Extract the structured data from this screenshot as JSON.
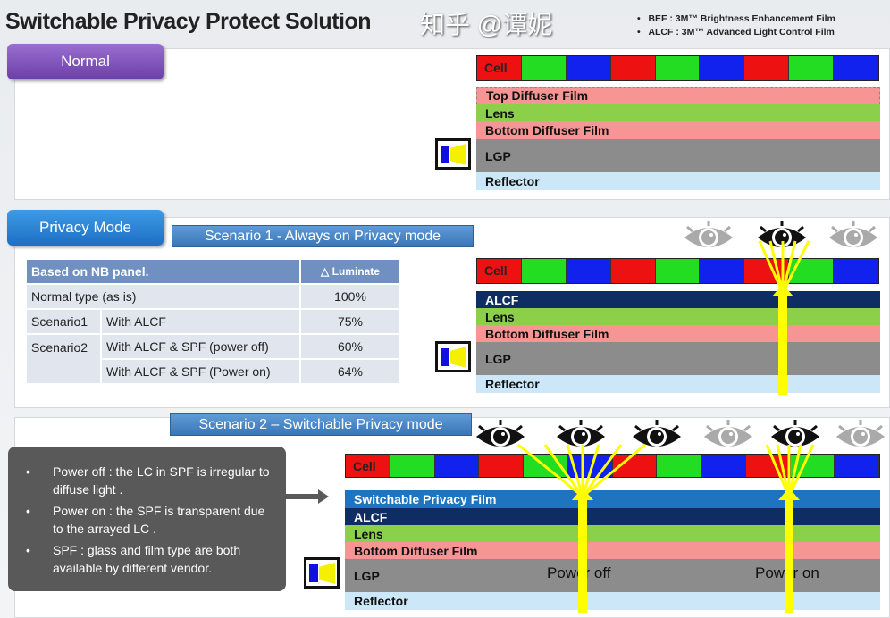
{
  "header": {
    "title": "Switchable Privacy Protect Solution",
    "notes": [
      "BEF : 3M™ Brightness Enhancement Film",
      "ALCF : 3M™ Advanced Light Control Film"
    ]
  },
  "normal": {
    "button": "Normal",
    "cell": "Cell",
    "layers": [
      "Top Diffuser  Film",
      "Lens",
      "Bottom Diffuser  Film",
      "LGP",
      "Reflector"
    ]
  },
  "privacy": {
    "button": "Privacy Mode",
    "scenario1": "Scenario 1  - Always on Privacy mode",
    "cell": "Cell",
    "layers": [
      "ALCF",
      "Lens",
      "Bottom Diffuser  Film",
      "LGP",
      "Reflector"
    ],
    "table": {
      "header": [
        "Based on NB panel.",
        "△ Luminate"
      ],
      "rows": [
        [
          "Normal type (as is)",
          "",
          "100%"
        ],
        [
          "Scenario1",
          "With ALCF",
          "75%"
        ],
        [
          "Scenario2",
          "With ALCF & SPF  (power off)",
          "60%"
        ],
        [
          "",
          "With ALCF & SPF  (Power on)",
          "64%"
        ]
      ]
    }
  },
  "scenario2": {
    "title": "Scenario 2 – Switchable Privacy mode",
    "cell": "Cell",
    "layers": [
      "Switchable  Privacy  Film",
      "ALCF",
      "Lens",
      "Bottom Diffuser  Film",
      "LGP",
      "Reflector"
    ],
    "bullets": [
      "Power off : the LC in SPF is irregular to diffuse light .",
      "Power on : the SPF is transparent due to the  arrayed LC .",
      "SPF : glass and film type are both available by different vendor."
    ],
    "power_off": "Power off",
    "power_on": "Power on"
  },
  "watermark": "知乎 @谭妮",
  "colors": {
    "red": "#ee1111",
    "green": "#22dd22",
    "blue": "#1122ee",
    "lens": "#8cd04a",
    "diffuser": "#f79494",
    "lgp": "#8c8c8c",
    "reflector": "#cce8f8",
    "alcf": "#0d2d63",
    "spf": "#1e74be",
    "arrow": "#ffff00"
  }
}
